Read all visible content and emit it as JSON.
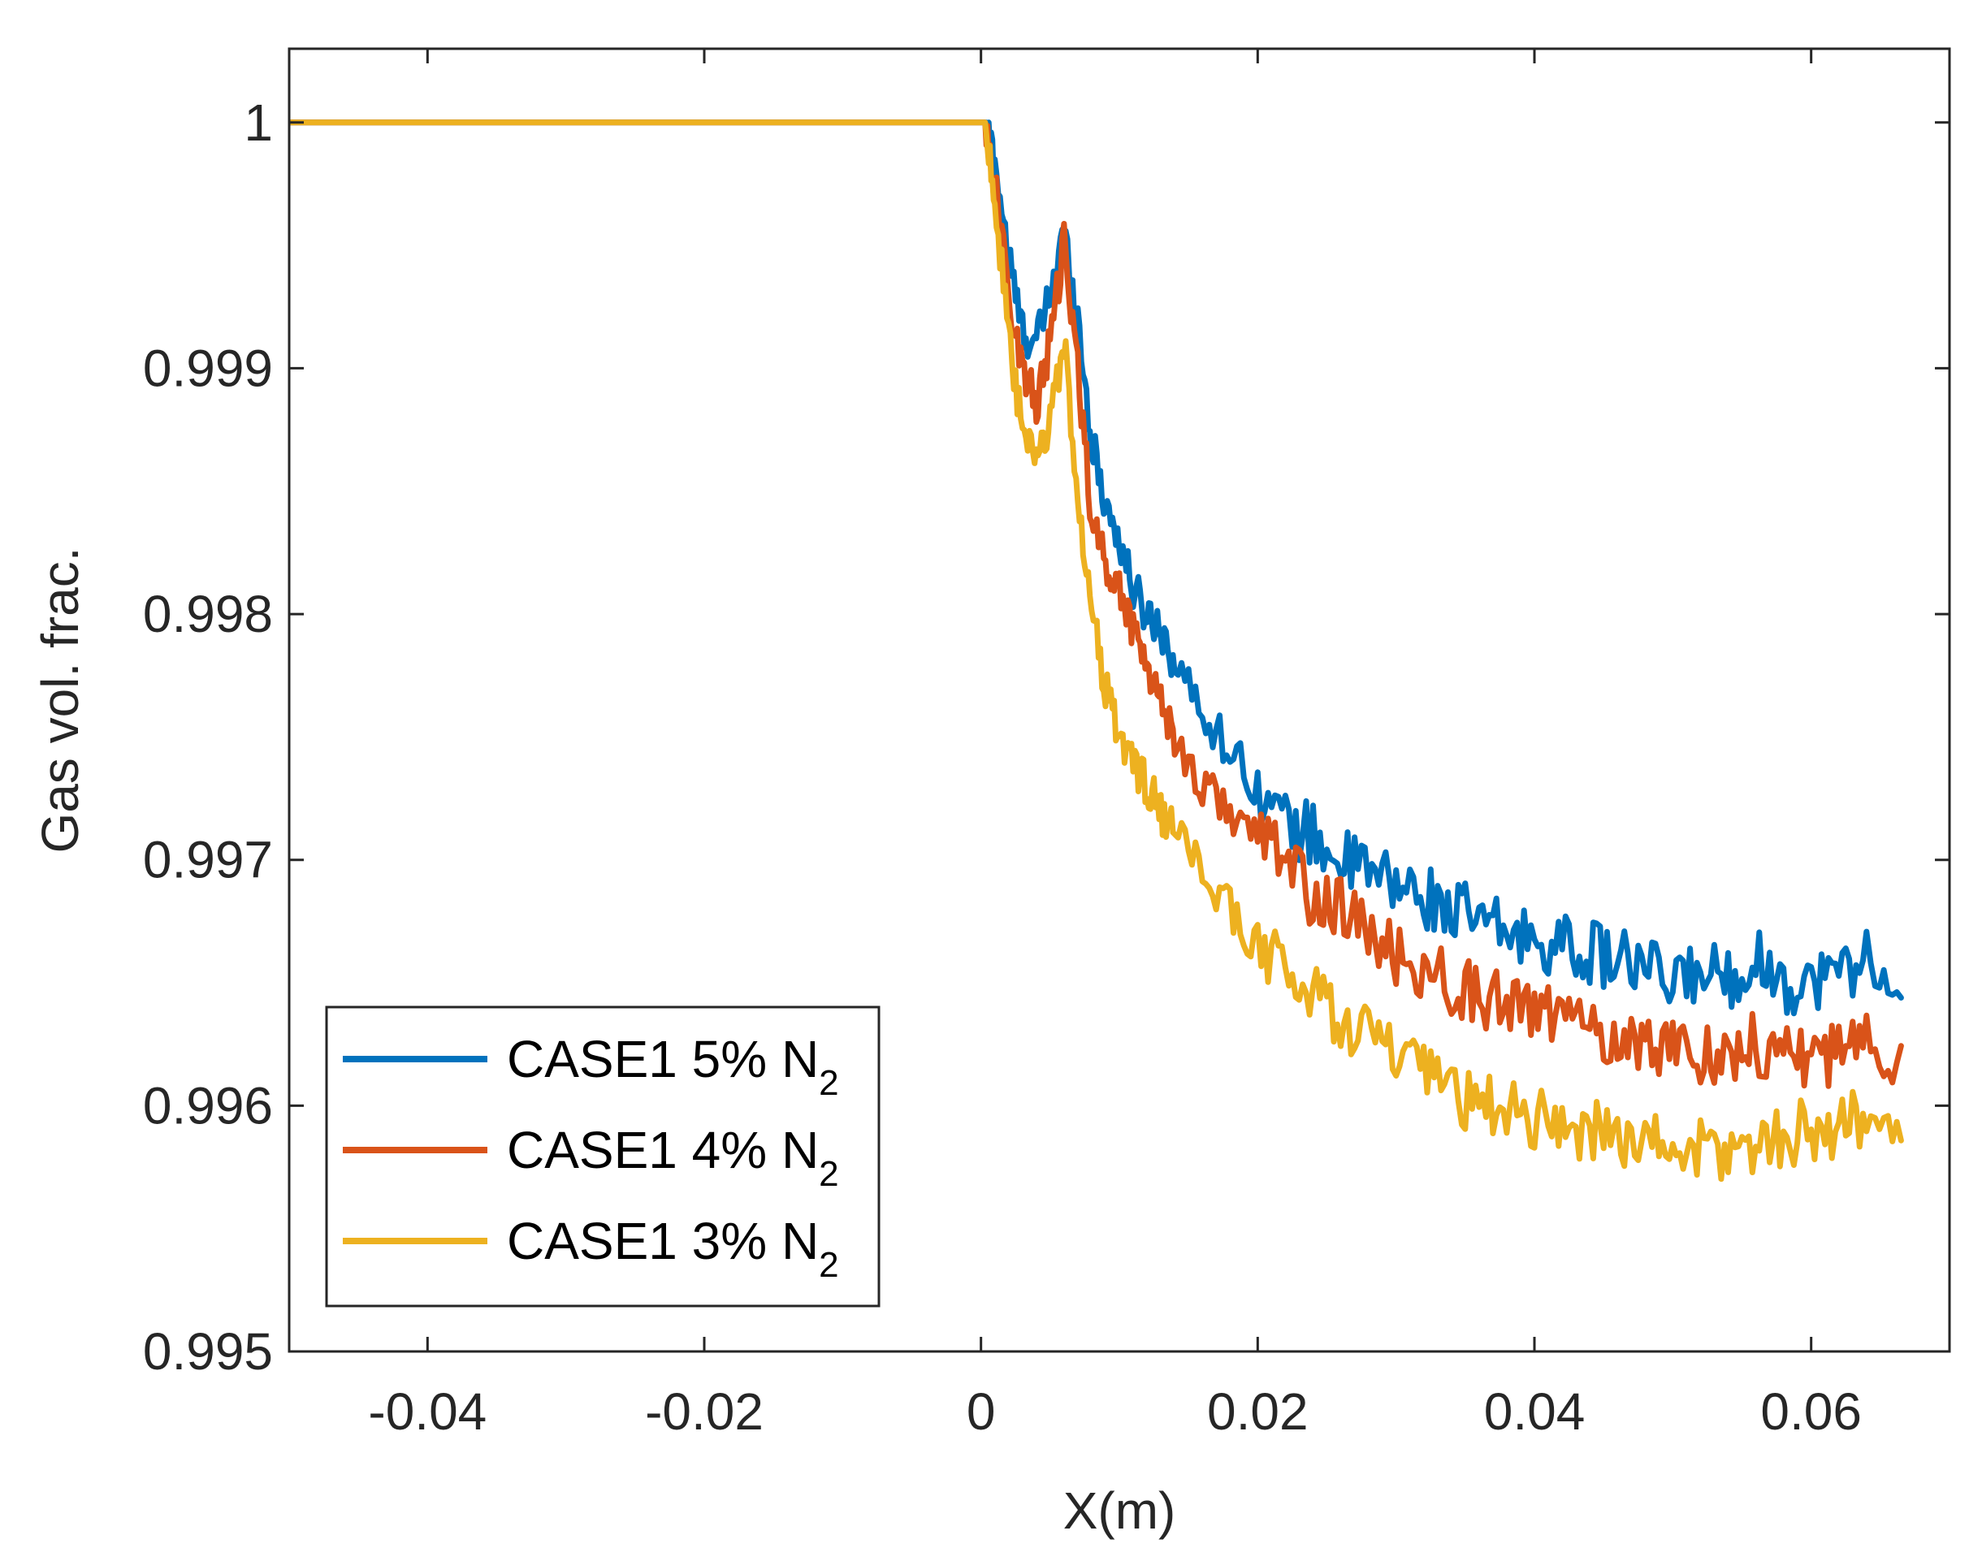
{
  "chart_data": {
    "type": "line",
    "title": "",
    "xlabel": "X(m)",
    "ylabel": "Gas vol. frac.",
    "xlim": [
      -0.05,
      0.07
    ],
    "ylim": [
      0.995,
      1.0003
    ],
    "xticks": [
      -0.04,
      -0.02,
      0,
      0.02,
      0.04,
      0.06
    ],
    "xtick_labels": [
      "-0.04",
      "-0.02",
      "0",
      "0.02",
      "0.04",
      "0.06"
    ],
    "yticks": [
      0.995,
      0.996,
      0.997,
      0.998,
      0.999,
      1.0
    ],
    "ytick_labels": [
      "0.995",
      "0.996",
      "0.997",
      "0.998",
      "0.999",
      "1"
    ],
    "grid": false,
    "legend_position": "bottom-left",
    "series": [
      {
        "name": "CASE1 5% N",
        "subscript": "2",
        "color": "#0072BD",
        "x": [
          -0.05,
          0.0003,
          0.001,
          0.002,
          0.003,
          0.004,
          0.005,
          0.006,
          0.007,
          0.008,
          0.009,
          0.01,
          0.011,
          0.012,
          0.013,
          0.014,
          0.016,
          0.018,
          0.02,
          0.022,
          0.024,
          0.026,
          0.028,
          0.03,
          0.032,
          0.034,
          0.036,
          0.038,
          0.04,
          0.042,
          0.044,
          0.046,
          0.048,
          0.05,
          0.052,
          0.054,
          0.056,
          0.058,
          0.06,
          0.062,
          0.064,
          0.0665
        ],
        "y": [
          1.0,
          1.0,
          0.99985,
          0.99945,
          0.99915,
          0.9991,
          0.9993,
          0.99955,
          0.9992,
          0.9987,
          0.99845,
          0.9983,
          0.9981,
          0.998,
          0.99795,
          0.9978,
          0.9976,
          0.99745,
          0.9973,
          0.99715,
          0.9971,
          0.997,
          0.99695,
          0.9969,
          0.99685,
          0.9968,
          0.99675,
          0.9967,
          0.99668,
          0.99665,
          0.99662,
          0.9966,
          0.99655,
          0.9965,
          0.99655,
          0.99652,
          0.9966,
          0.9965,
          0.9965,
          0.99655,
          0.9966,
          0.9965
        ]
      },
      {
        "name": "CASE1 4% N",
        "subscript": "2",
        "color": "#D95319",
        "x": [
          -0.05,
          0.0003,
          0.001,
          0.002,
          0.003,
          0.004,
          0.005,
          0.006,
          0.007,
          0.008,
          0.009,
          0.01,
          0.011,
          0.012,
          0.013,
          0.014,
          0.016,
          0.018,
          0.02,
          0.022,
          0.024,
          0.026,
          0.028,
          0.03,
          0.032,
          0.034,
          0.036,
          0.038,
          0.04,
          0.042,
          0.044,
          0.046,
          0.048,
          0.05,
          0.052,
          0.054,
          0.056,
          0.058,
          0.06,
          0.062,
          0.064,
          0.0665
        ],
        "y": [
          1.0,
          1.0,
          0.99975,
          0.9993,
          0.999,
          0.99885,
          0.9991,
          0.9995,
          0.999,
          0.9984,
          0.9982,
          0.9981,
          0.99795,
          0.9978,
          0.99765,
          0.9975,
          0.9973,
          0.9972,
          0.9971,
          0.997,
          0.99685,
          0.9968,
          0.9967,
          0.9966,
          0.99655,
          0.9965,
          0.99645,
          0.9964,
          0.9964,
          0.99635,
          0.9963,
          0.99628,
          0.99625,
          0.99625,
          0.99622,
          0.9962,
          0.99625,
          0.99622,
          0.9962,
          0.9962,
          0.99625,
          0.9962
        ]
      },
      {
        "name": "CASE1 3% N",
        "subscript": "2",
        "color": "#EDB120",
        "x": [
          -0.05,
          0.0003,
          0.001,
          0.002,
          0.003,
          0.004,
          0.005,
          0.006,
          0.007,
          0.008,
          0.009,
          0.01,
          0.011,
          0.012,
          0.013,
          0.014,
          0.016,
          0.018,
          0.02,
          0.022,
          0.024,
          0.026,
          0.028,
          0.03,
          0.032,
          0.034,
          0.036,
          0.038,
          0.04,
          0.042,
          0.044,
          0.046,
          0.048,
          0.05,
          0.052,
          0.054,
          0.056,
          0.058,
          0.06,
          0.062,
          0.064,
          0.0665
        ],
        "y": [
          1.0,
          1.0,
          0.9997,
          0.9991,
          0.99875,
          0.9986,
          0.9988,
          0.9991,
          0.9985,
          0.998,
          0.9977,
          0.9975,
          0.9974,
          0.9973,
          0.9972,
          0.9971,
          0.99695,
          0.9968,
          0.99665,
          0.99655,
          0.99645,
          0.99635,
          0.9963,
          0.9962,
          0.99612,
          0.99605,
          0.996,
          0.99598,
          0.99595,
          0.99592,
          0.9959,
          0.99588,
          0.99585,
          0.99583,
          0.99582,
          0.9958,
          0.99585,
          0.99588,
          0.9959,
          0.99592,
          0.99595,
          0.9959
        ]
      }
    ]
  }
}
